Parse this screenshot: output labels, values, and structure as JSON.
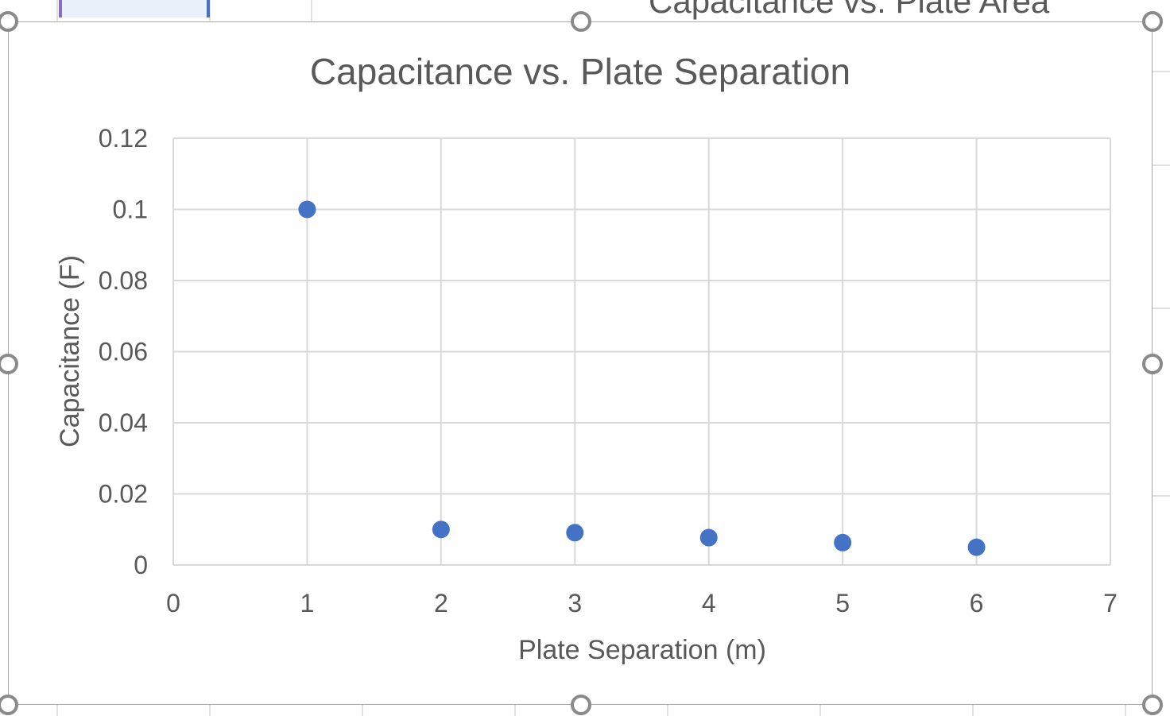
{
  "background_chart": {
    "title_fragment": "Capacitance vs. Plate Area"
  },
  "chart_data": {
    "type": "scatter",
    "title": "Capacitance vs. Plate Separation",
    "xlabel": "Plate Separation (m)",
    "ylabel": "Capacitance (F)",
    "xlim": [
      0,
      7
    ],
    "ylim": [
      0,
      0.12
    ],
    "x_ticks": [
      "0",
      "1",
      "2",
      "3",
      "4",
      "5",
      "6",
      "7"
    ],
    "y_ticks": [
      "0",
      "0.02",
      "0.04",
      "0.06",
      "0.08",
      "0.1",
      "0.12"
    ],
    "grid": true,
    "legend": "none",
    "series": [
      {
        "color": "#4472c4",
        "points": [
          {
            "x": 1,
            "y": 0.1
          },
          {
            "x": 2,
            "y": 0.01
          },
          {
            "x": 3,
            "y": 0.0091
          },
          {
            "x": 4,
            "y": 0.0077
          },
          {
            "x": 5,
            "y": 0.0063
          },
          {
            "x": 6,
            "y": 0.005
          }
        ]
      }
    ]
  },
  "colors": {
    "marker": "#4472c4",
    "text": "#595959",
    "gridline": "#d9d9d9",
    "frame": "#a8a8a8",
    "handle": "#8a8a8a"
  }
}
